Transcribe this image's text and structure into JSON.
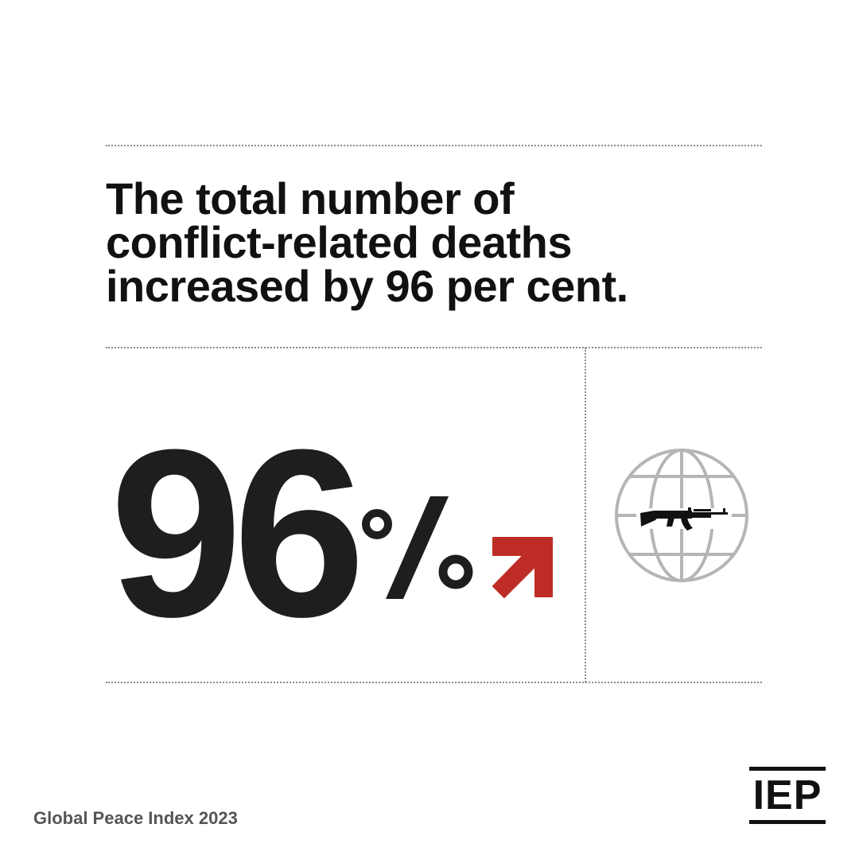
{
  "headline": {
    "lines": [
      "The total number of",
      "conflict-related deaths",
      "increased by 96 per cent."
    ]
  },
  "stat": {
    "value": "96",
    "unit_icon": "percent-sign-icon",
    "trend_icon": "arrow-up-right-icon"
  },
  "illustration": {
    "icon": "globe-with-rifle-icon"
  },
  "footer": {
    "source": "Global Peace Index 2023",
    "logo_text": "IEP"
  },
  "colors": {
    "text": "#111111",
    "stat": "#1e1e1e",
    "accent_red": "#be2c26",
    "globe_gray": "#b5b5b5",
    "divider": "#8a8a8a",
    "source_gray": "#555555"
  }
}
